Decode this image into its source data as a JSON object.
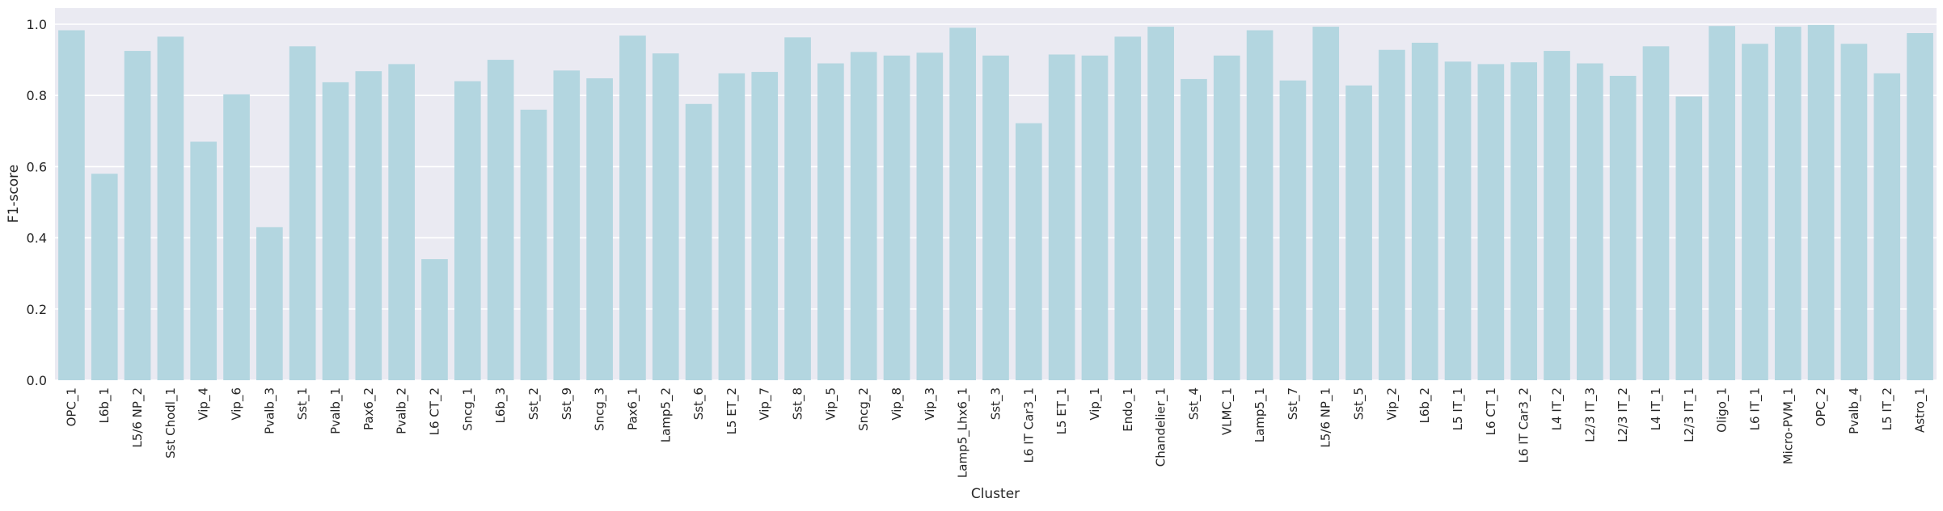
{
  "chart_data": {
    "type": "bar",
    "xlabel": "Cluster",
    "ylabel": "F1-score",
    "ylim": [
      0,
      1.0
    ],
    "yticks": [
      "0.0",
      "0.2",
      "0.4",
      "0.6",
      "0.8",
      "1.0"
    ],
    "grid": true,
    "bar_color": "#b3d6e0",
    "background_color": "#eaeaf2",
    "categories": [
      "OPC_1",
      "L6b_1",
      "L5/6 NP_2",
      "Sst Chodl_1",
      "Vip_4",
      "Vip_6",
      "Pvalb_3",
      "Sst_1",
      "Pvalb_1",
      "Pax6_2",
      "Pvalb_2",
      "L6 CT_2",
      "Sncg_1",
      "L6b_3",
      "Sst_2",
      "Sst_9",
      "Sncg_3",
      "Pax6_1",
      "Lamp5_2",
      "Sst_6",
      "L5 ET_2",
      "Vip_7",
      "Sst_8",
      "Vip_5",
      "Sncg_2",
      "Vip_8",
      "Vip_3",
      "Lamp5_Lhx6_1",
      "Sst_3",
      "L6 IT Car3_1",
      "L5 ET_1",
      "Vip_1",
      "Endo_1",
      "Chandelier_1",
      "Sst_4",
      "VLMC_1",
      "Lamp5_1",
      "Sst_7",
      "L5/6 NP_1",
      "Sst_5",
      "Vip_2",
      "L6b_2",
      "L5 IT_1",
      "L6 CT_1",
      "L6 IT Car3_2",
      "L4 IT_2",
      "L2/3 IT_3",
      "L2/3 IT_2",
      "L4 IT_1",
      "L2/3 IT_1",
      "Oligo_1",
      "L6 IT_1",
      "Micro-PVM_1",
      "OPC_2",
      "Pvalb_4",
      "L5 IT_2",
      "Astro_1"
    ],
    "values": [
      0.983,
      0.58,
      0.925,
      0.965,
      0.67,
      0.803,
      0.43,
      0.938,
      0.837,
      0.868,
      0.888,
      0.34,
      0.84,
      0.9,
      0.76,
      0.87,
      0.848,
      0.968,
      0.918,
      0.776,
      0.862,
      0.866,
      0.963,
      0.89,
      0.922,
      0.912,
      0.92,
      0.99,
      0.912,
      0.722,
      0.915,
      0.912,
      0.965,
      0.993,
      0.846,
      0.912,
      0.983,
      0.842,
      0.993,
      0.828,
      0.928,
      0.948,
      0.895,
      0.888,
      0.893,
      0.925,
      0.89,
      0.855,
      0.938,
      0.797,
      0.995,
      0.945,
      0.993,
      0.998,
      0.945,
      0.862,
      0.975
    ]
  }
}
